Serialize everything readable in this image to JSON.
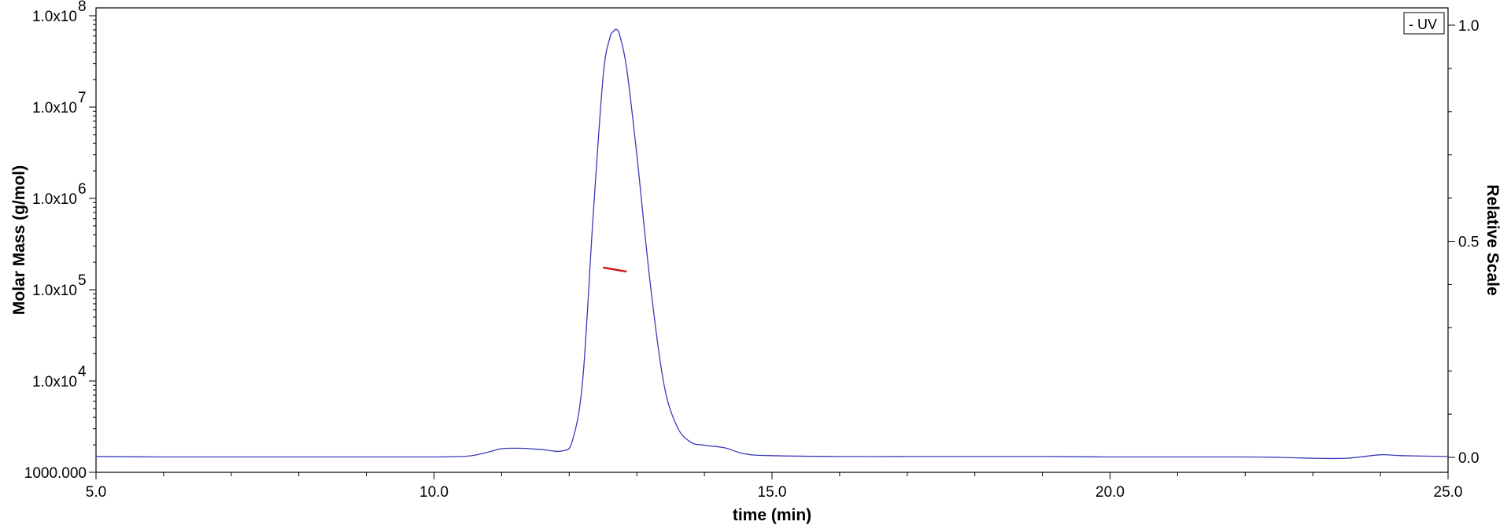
{
  "chart_data": {
    "type": "line",
    "title": "",
    "xlabel": "time (min)",
    "ylabel_left": "Molar Mass (g/mol)",
    "ylabel_right": "Relative Scale",
    "xlim": [
      5.0,
      25.0
    ],
    "x_ticks": [
      5.0,
      10.0,
      15.0,
      20.0,
      25.0
    ],
    "x_tick_labels": [
      "5.0",
      "10.0",
      "15.0",
      "20.0",
      "25.0"
    ],
    "y_left_scale": "log",
    "y_left_lim": [
      1000,
      100000000
    ],
    "y_left_ticks": [
      {
        "value": 1000,
        "mantissa": "1000.000",
        "exp": ""
      },
      {
        "value": 10000,
        "mantissa": "1.0x10",
        "exp": "4"
      },
      {
        "value": 100000,
        "mantissa": "1.0x10",
        "exp": "5"
      },
      {
        "value": 1000000,
        "mantissa": "1.0x10",
        "exp": "6"
      },
      {
        "value": 10000000,
        "mantissa": "1.0x10",
        "exp": "7"
      },
      {
        "value": 100000000,
        "mantissa": "1.0x10",
        "exp": "8"
      }
    ],
    "y_right_lim": [
      0.0,
      1.0
    ],
    "y_right_ticks": [
      0.0,
      0.5,
      1.0
    ],
    "y_right_tick_labels": [
      "0.0",
      "0.5",
      "1.0"
    ],
    "legend": {
      "position": "top-right",
      "entries": [
        {
          "label": "- UV"
        }
      ]
    },
    "grid": false,
    "series": [
      {
        "name": "UV",
        "axis": "right",
        "color": "#3a3ab8",
        "x": [
          5.0,
          6.0,
          7.0,
          8.0,
          9.0,
          10.0,
          10.5,
          10.8,
          11.0,
          11.3,
          11.6,
          11.9,
          12.05,
          12.2,
          12.35,
          12.5,
          12.6,
          12.65,
          12.7,
          12.75,
          12.85,
          13.0,
          13.2,
          13.4,
          13.6,
          13.8,
          14.0,
          14.3,
          14.6,
          15.0,
          16.0,
          17.0,
          18.0,
          19.0,
          20.0,
          21.0,
          22.0,
          22.5,
          23.0,
          23.5,
          24.0,
          24.3,
          25.0
        ],
        "y": [
          0.002,
          0.001,
          0.001,
          0.001,
          0.001,
          0.001,
          0.003,
          0.012,
          0.02,
          0.021,
          0.018,
          0.015,
          0.04,
          0.18,
          0.55,
          0.88,
          0.97,
          0.985,
          0.99,
          0.975,
          0.9,
          0.7,
          0.4,
          0.17,
          0.07,
          0.035,
          0.028,
          0.022,
          0.008,
          0.004,
          0.002,
          0.002,
          0.002,
          0.002,
          0.001,
          0.001,
          0.001,
          0.0,
          -0.002,
          -0.002,
          0.006,
          0.004,
          0.002
        ]
      },
      {
        "name": "",
        "axis": "left",
        "color": "#cc1111",
        "x": [
          12.5,
          12.85
        ],
        "y": [
          175000,
          158000
        ]
      }
    ]
  }
}
